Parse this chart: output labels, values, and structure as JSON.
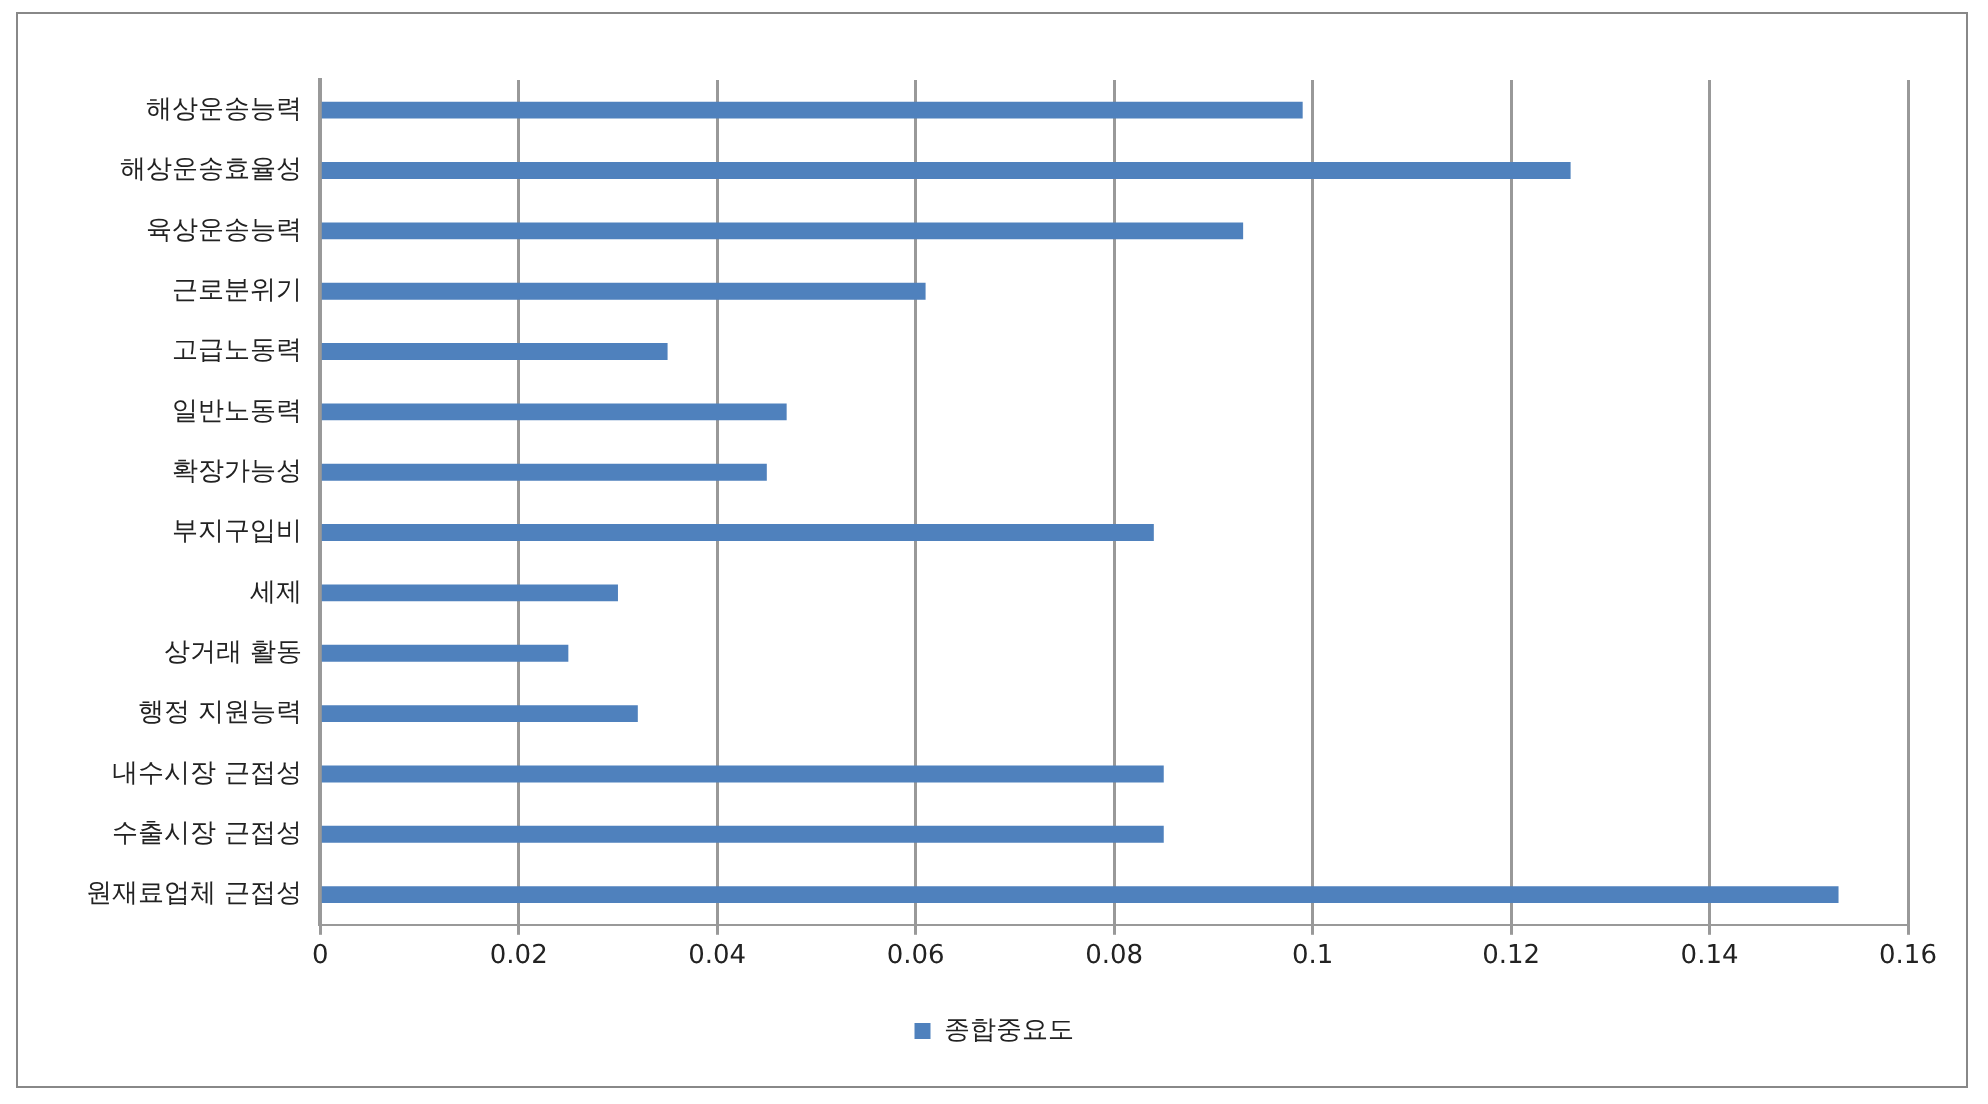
{
  "chart_data": {
    "type": "bar",
    "orientation": "horizontal",
    "categories": [
      "해상운송능력",
      "해상운송효율성",
      "육상운송능력",
      "근로분위기",
      "고급노동력",
      "일반노동력",
      "확장가능성",
      "부지구입비",
      "세제",
      "상거래 활동",
      "행정 지원능력",
      "내수시장 근접성",
      "수출시장 근접성",
      "원재료업체 근접성"
    ],
    "series": [
      {
        "name": "종합중요도",
        "color": "#4f81bd",
        "values": [
          0.099,
          0.126,
          0.093,
          0.061,
          0.035,
          0.047,
          0.045,
          0.084,
          0.03,
          0.025,
          0.032,
          0.085,
          0.085,
          0.153
        ]
      }
    ],
    "xlim": [
      0,
      0.16
    ],
    "xticks": [
      0,
      0.02,
      0.04,
      0.06,
      0.08,
      0.1,
      0.12,
      0.14,
      0.16
    ],
    "grid": "x",
    "legend": "bottom"
  }
}
